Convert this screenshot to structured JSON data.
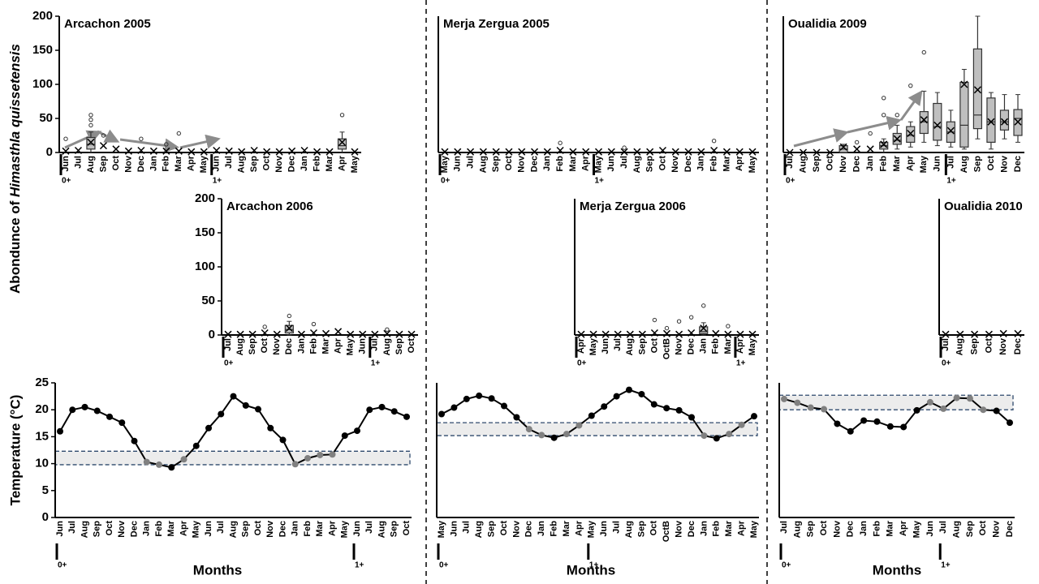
{
  "chart_data": [
    {
      "type": "box",
      "title": "Arcachon 2005",
      "ylabel": "Abondunce of ",
      "ylabel_italic": "Himasthla quissetensis",
      "color": "#bfbfbf",
      "categories": [
        "Jun",
        "Jul",
        "Aug",
        "Sep",
        "Oct",
        "Nov",
        "Dec",
        "Jan",
        "Feb",
        "Mar",
        "Apr",
        "May",
        "Jun",
        "Jul",
        "Aug",
        "Sep",
        "Oct",
        "Nov",
        "Dec",
        "Jan",
        "Feb",
        "Mar",
        "Apr",
        "May"
      ],
      "values": [
        2,
        3,
        15,
        10,
        5,
        2,
        3,
        2,
        2,
        2,
        1,
        1,
        3,
        2,
        1,
        3,
        1,
        1,
        2,
        3,
        1,
        1,
        15,
        1
      ],
      "boxes": [
        {
          "index": 2,
          "min": 0,
          "q1": 5,
          "median": 12,
          "q3": 22,
          "max": 30
        },
        {
          "index": 22,
          "min": 0,
          "q1": 5,
          "median": 10,
          "q3": 20,
          "max": 30
        }
      ],
      "outliers": [
        {
          "index": 0,
          "value": 20
        },
        {
          "index": 2,
          "value": 40
        },
        {
          "index": 2,
          "value": 48
        },
        {
          "index": 2,
          "value": 55
        },
        {
          "index": 3,
          "value": 25
        },
        {
          "index": 6,
          "value": 20
        },
        {
          "index": 8,
          "value": 12
        },
        {
          "index": 9,
          "value": 28
        },
        {
          "index": 22,
          "value": 55
        }
      ],
      "age_marks": [
        {
          "index": 0,
          "label": "0+"
        },
        {
          "index": 12,
          "label": "1+"
        }
      ],
      "ylim": [
        0,
        200
      ],
      "yticks": [
        0,
        50,
        100,
        150,
        200
      ]
    },
    {
      "type": "box",
      "title": "Merja Zergua 2005",
      "color": "#bfbfbf",
      "categories": [
        "May",
        "Jun",
        "Jul",
        "Aug",
        "Sep",
        "Oct",
        "Nov",
        "Dec",
        "Jan",
        "Feb",
        "Mar",
        "Apr",
        "May",
        "Jun",
        "Jul",
        "Aug",
        "Sep",
        "Oct",
        "Nov",
        "Dec",
        "Jan",
        "Feb",
        "Mar",
        "Apr",
        "May"
      ],
      "values": [
        1,
        1,
        1,
        1,
        1,
        1,
        1,
        1,
        1,
        3,
        1,
        1,
        1,
        1,
        1,
        1,
        1,
        3,
        1,
        1,
        1,
        3,
        1,
        1,
        1
      ],
      "outliers": [
        {
          "index": 9,
          "value": 14
        },
        {
          "index": 14,
          "value": 7
        },
        {
          "index": 21,
          "value": 17
        }
      ],
      "age_marks": [
        {
          "index": 0,
          "label": "0+"
        },
        {
          "index": 12,
          "label": "1+"
        }
      ],
      "ylim": [
        0,
        200
      ]
    },
    {
      "type": "box",
      "title": "Oualidia 2009",
      "color": "#bfbfbf",
      "categories": [
        "Jul",
        "Aug",
        "Sep",
        "Oct",
        "Nov",
        "Dec",
        "Jan",
        "Feb",
        "Mar",
        "Apr",
        "May",
        "Jun",
        "Jul",
        "Aug",
        "Sep",
        "Oct",
        "Nov",
        "Dec"
      ],
      "values": [
        0,
        0,
        0,
        0,
        8,
        5,
        5,
        12,
        20,
        28,
        48,
        40,
        32,
        100,
        92,
        45,
        45,
        45
      ],
      "boxes": [
        {
          "index": 4,
          "min": 0,
          "q1": 0,
          "median": 5,
          "q3": 10,
          "max": 12
        },
        {
          "index": 7,
          "min": 0,
          "q1": 5,
          "median": 10,
          "q3": 15,
          "max": 20
        },
        {
          "index": 8,
          "min": 5,
          "q1": 12,
          "median": 18,
          "q3": 28,
          "max": 40
        },
        {
          "index": 9,
          "min": 8,
          "q1": 15,
          "median": 25,
          "q3": 38,
          "max": 45
        },
        {
          "index": 10,
          "min": 15,
          "q1": 28,
          "median": 45,
          "q3": 60,
          "max": 90
        },
        {
          "index": 11,
          "min": 10,
          "q1": 18,
          "median": 38,
          "q3": 72,
          "max": 88
        },
        {
          "index": 12,
          "min": 8,
          "q1": 15,
          "median": 30,
          "q3": 45,
          "max": 62
        },
        {
          "index": 13,
          "min": 5,
          "q1": 8,
          "median": 40,
          "q3": 103,
          "max": 122
        },
        {
          "index": 14,
          "min": 20,
          "q1": 35,
          "median": 55,
          "q3": 152,
          "max": 200
        },
        {
          "index": 15,
          "min": 5,
          "q1": 15,
          "median": 45,
          "q3": 80,
          "max": 88
        },
        {
          "index": 16,
          "min": 20,
          "q1": 33,
          "median": 45,
          "q3": 62,
          "max": 85
        },
        {
          "index": 17,
          "min": 15,
          "q1": 25,
          "median": 50,
          "q3": 63,
          "max": 85
        }
      ],
      "outliers": [
        {
          "index": 5,
          "value": 15
        },
        {
          "index": 6,
          "value": 28
        },
        {
          "index": 7,
          "value": 55
        },
        {
          "index": 7,
          "value": 80
        },
        {
          "index": 8,
          "value": 55
        },
        {
          "index": 9,
          "value": 98
        },
        {
          "index": 10,
          "value": 147
        }
      ],
      "age_marks": [
        {
          "index": 0,
          "label": "0+"
        },
        {
          "index": 12,
          "label": "1+"
        }
      ],
      "ylim": [
        0,
        200
      ]
    },
    {
      "type": "box",
      "title": "Arcachon 2006",
      "color": "#bfbfbf",
      "categories": [
        "Jul",
        "Aug",
        "Sep",
        "Oct",
        "Nov",
        "Dec",
        "Jan",
        "Feb",
        "Mar",
        "Apr",
        "May",
        "Jun",
        "Jul",
        "Aug",
        "Sep",
        "Oct"
      ],
      "values": [
        1,
        1,
        1,
        3,
        1,
        10,
        1,
        3,
        2,
        5,
        1,
        1,
        1,
        2,
        1,
        1
      ],
      "boxes": [
        {
          "index": 5,
          "min": 0,
          "q1": 3,
          "median": 8,
          "q3": 14,
          "max": 20
        }
      ],
      "outliers": [
        {
          "index": 3,
          "value": 12
        },
        {
          "index": 5,
          "value": 28
        },
        {
          "index": 7,
          "value": 16
        },
        {
          "index": 13,
          "value": 8
        }
      ],
      "age_marks": [
        {
          "index": 0,
          "label": "0+"
        },
        {
          "index": 12,
          "label": "1+"
        }
      ],
      "ylim": [
        0,
        200
      ],
      "yticks": [
        0,
        50,
        100,
        150,
        200
      ]
    },
    {
      "type": "box",
      "title": "Merja Zergua 2006",
      "color": "#bfbfbf",
      "categories": [
        "Apr",
        "May",
        "Jun",
        "Jul",
        "Aug",
        "Sep",
        "Oct",
        "OctB",
        "Nov",
        "Dec",
        "Jan",
        "Feb",
        "Mar",
        "Apr",
        "May"
      ],
      "values": [
        1,
        1,
        1,
        1,
        1,
        1,
        3,
        2,
        1,
        3,
        10,
        2,
        1,
        1,
        1
      ],
      "boxes": [
        {
          "index": 10,
          "min": 0,
          "q1": 2,
          "median": 5,
          "q3": 12,
          "max": 18
        }
      ],
      "outliers": [
        {
          "index": 6,
          "value": 22
        },
        {
          "index": 7,
          "value": 10
        },
        {
          "index": 8,
          "value": 20
        },
        {
          "index": 9,
          "value": 26
        },
        {
          "index": 10,
          "value": 43
        },
        {
          "index": 12,
          "value": 13
        }
      ],
      "age_marks": [
        {
          "index": 0,
          "label": "0+"
        },
        {
          "index": 13,
          "label": "1+"
        }
      ],
      "ylim": [
        0,
        200
      ]
    },
    {
      "type": "box",
      "title": "Oualidia 2010",
      "color": "#bfbfbf",
      "categories": [
        "Jul",
        "Aug",
        "Sep",
        "Oct",
        "Nov",
        "Dec"
      ],
      "values": [
        1,
        1,
        1,
        1,
        2,
        2
      ],
      "age_marks": [
        {
          "index": 0,
          "label": "0+"
        }
      ],
      "ylim": [
        0,
        200
      ]
    },
    {
      "type": "line",
      "ylabel": "Temperature (°C)",
      "xlabel": "Months",
      "color": "#000000",
      "in_band_color": "#808080",
      "categories": [
        "Jun",
        "Jul",
        "Aug",
        "Sep",
        "Oct",
        "Nov",
        "Dec",
        "Jan",
        "Feb",
        "Mar",
        "Apr",
        "May",
        "Jun",
        "Jul",
        "Aug",
        "Sep",
        "Oct",
        "Nov",
        "Dec",
        "Jan",
        "Feb",
        "Mar",
        "Apr",
        "May",
        "Jun",
        "Jul",
        "Aug",
        "Sep",
        "Oct"
      ],
      "values": [
        16,
        20,
        20.5,
        19.8,
        18.7,
        17.6,
        14.2,
        10.3,
        9.8,
        9.3,
        10.8,
        13.3,
        16.6,
        19.2,
        22.5,
        20.8,
        20.1,
        16.6,
        14.4,
        9.9,
        11,
        11.6,
        11.7,
        15.2,
        16.1,
        20,
        20.5,
        19.7,
        18.7
      ],
      "band": [
        9.8,
        12.3
      ],
      "age_marks": [
        {
          "index": 0,
          "label": "0+"
        },
        {
          "index": 24,
          "label": "1+"
        }
      ],
      "ylim": [
        0,
        25
      ],
      "yticks": [
        0,
        5,
        10,
        15,
        20,
        25
      ]
    },
    {
      "type": "line",
      "xlabel": "Months",
      "color": "#000000",
      "in_band_color": "#808080",
      "categories": [
        "May",
        "Jun",
        "Jul",
        "Aug",
        "Sep",
        "Oct",
        "Nov",
        "Dec",
        "Jan",
        "Feb",
        "Mar",
        "Apr",
        "May",
        "Jun",
        "Jul",
        "Aug",
        "Sep",
        "Oct",
        "OctB",
        "Nov",
        "Dec",
        "Jan",
        "Feb",
        "Mar",
        "Apr",
        "May"
      ],
      "values": [
        19.2,
        20.4,
        22,
        22.6,
        22.1,
        20.7,
        18.6,
        16.4,
        15.3,
        14.8,
        15.5,
        17.1,
        18.9,
        20.6,
        22.5,
        23.7,
        22.9,
        21,
        20.3,
        19.9,
        18.6,
        15.2,
        14.7,
        15.5,
        17.2,
        18.8
      ],
      "band": [
        15.2,
        17.6
      ],
      "age_marks": [
        {
          "index": 0,
          "label": "0+"
        },
        {
          "index": 12,
          "label": "1+"
        }
      ],
      "ylim": [
        0,
        25
      ]
    },
    {
      "type": "line",
      "xlabel": "Months",
      "color": "#000000",
      "in_band_color": "#808080",
      "categories": [
        "Jul",
        "Aug",
        "Sep",
        "Oct",
        "Nov",
        "Dec",
        "Jan",
        "Feb",
        "Mar",
        "Apr",
        "May",
        "Jun",
        "Jul",
        "Aug",
        "Sep",
        "Oct",
        "Nov",
        "Dec"
      ],
      "values": [
        22,
        21.3,
        20.4,
        20.1,
        17.4,
        16,
        18,
        17.8,
        16.9,
        16.8,
        19.9,
        21.4,
        20.2,
        22.2,
        22.1,
        20,
        19.8,
        17.6
      ],
      "band": [
        20,
        22.7
      ],
      "age_marks": [
        {
          "index": 0,
          "label": "0+"
        },
        {
          "index": 12,
          "label": "1+"
        }
      ],
      "ylim": [
        0,
        25
      ]
    }
  ]
}
